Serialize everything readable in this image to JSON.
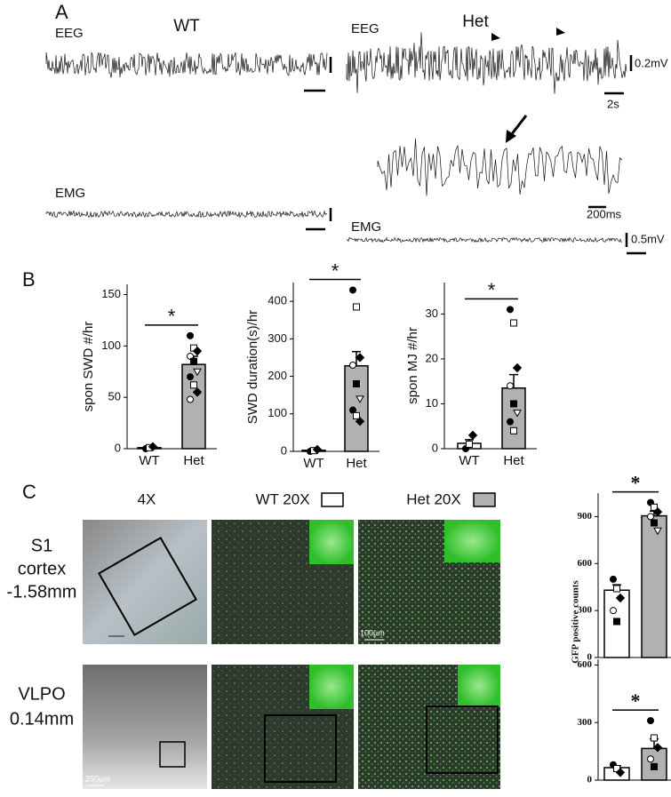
{
  "panel_labels": [
    "A",
    "B",
    "C"
  ],
  "panel_a": {
    "wt_title": "WT",
    "het_title": "Het",
    "eeg_labels": [
      "EEG",
      "EEG"
    ],
    "emg_labels": [
      "EMG",
      "EMG"
    ],
    "scale_labels": [
      "0.2mV",
      "2s",
      "200ms",
      "0.5mV"
    ]
  },
  "panel_c": {
    "column_headers": [
      "4X",
      "WT 20X",
      "Het 20X"
    ],
    "row_labels": [
      [
        "S1",
        "cortex",
        "-1.58mm"
      ],
      [
        "VLPO",
        "0.14mm"
      ]
    ],
    "scale_labels": [
      "100µm",
      "250µm"
    ]
  },
  "chart_data": [
    {
      "type": "bar",
      "ylabel": "spon SWD #/hr",
      "categories": [
        "WT",
        "Het"
      ],
      "values": [
        1,
        82
      ],
      "errors": [
        0.5,
        8
      ],
      "colors": [
        "#ffffff",
        "#b3b0b0"
      ],
      "points": [
        [
          0,
          1,
          2
        ],
        [
          110,
          98,
          95,
          90,
          85,
          75,
          70,
          62,
          55,
          48
        ]
      ],
      "ylim": [
        0,
        160
      ],
      "yticks": [
        0,
        50,
        100,
        150
      ],
      "significance": "*"
    },
    {
      "type": "bar",
      "ylabel": "SWD duration(s)/hr",
      "categories": [
        "WT",
        "Het"
      ],
      "values": [
        3,
        228
      ],
      "errors": [
        2,
        38
      ],
      "colors": [
        "#ffffff",
        "#b3b0b0"
      ],
      "points": [
        [
          0,
          2,
          5
        ],
        [
          430,
          385,
          250,
          230,
          180,
          140,
          110,
          95,
          80
        ]
      ],
      "ylim": [
        0,
        450
      ],
      "yticks": [
        0,
        100,
        200,
        300,
        400
      ],
      "significance": "*"
    },
    {
      "type": "bar",
      "ylabel": "spon MJ #/hr",
      "categories": [
        "WT",
        "Het"
      ],
      "values": [
        1.2,
        13.5
      ],
      "errors": [
        0.8,
        3
      ],
      "colors": [
        "#ffffff",
        "#b3b0b0"
      ],
      "points": [
        [
          0,
          1,
          3
        ],
        [
          31,
          28,
          18,
          14,
          10,
          8,
          6,
          4
        ]
      ],
      "ylim": [
        0,
        37
      ],
      "yticks": [
        0,
        10,
        20,
        30
      ],
      "significance": "*"
    },
    {
      "type": "bar",
      "ylabel": "GFP positive counts",
      "categories": [
        "WT",
        "Het"
      ],
      "values": [
        430,
        905
      ],
      "errors": [
        35,
        30
      ],
      "colors": [
        "#ffffff",
        "#b3b0b0"
      ],
      "points": [
        [
          500,
          440,
          380,
          300,
          230
        ],
        [
          990,
          960,
          930,
          900,
          860,
          810
        ]
      ],
      "ylim": [
        0,
        1050
      ],
      "yticks": [
        0,
        300,
        600,
        900
      ],
      "significance": "*"
    },
    {
      "type": "bar",
      "categories": [
        "WT",
        "Het"
      ],
      "values": [
        65,
        165
      ],
      "errors": [
        10,
        50
      ],
      "colors": [
        "#ffffff",
        "#b3b0b0"
      ],
      "points": [
        [
          80,
          60,
          40
        ],
        [
          310,
          220,
          170,
          110,
          70
        ]
      ],
      "ylim": [
        0,
        630
      ],
      "yticks": [
        0,
        300,
        600
      ],
      "significance": "*"
    }
  ]
}
